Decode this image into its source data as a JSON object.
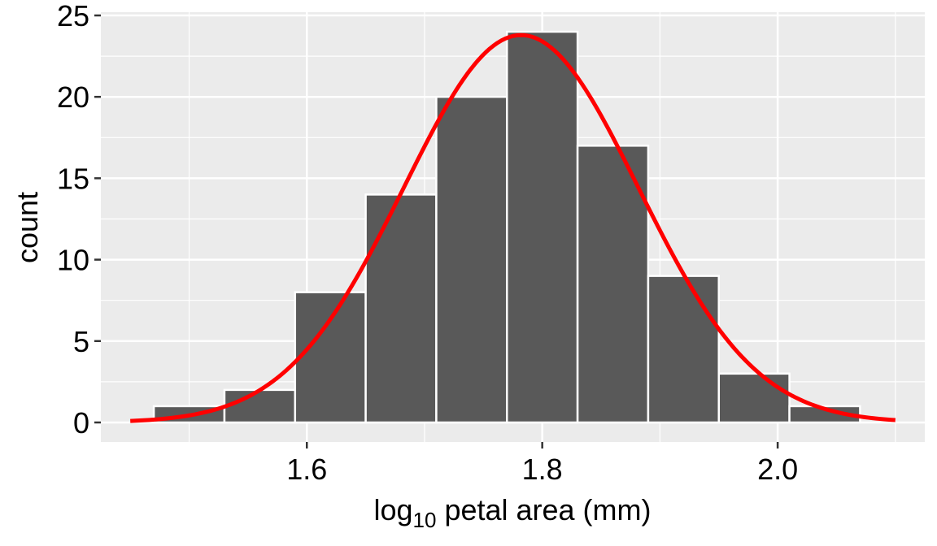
{
  "chart_data": {
    "type": "bar",
    "subtype": "histogram_with_normal_curve",
    "title": "",
    "xlabel": "log10 petal area (mm)",
    "xlabel_parts": {
      "base": "log",
      "subscript": "10",
      "rest": " petal area (mm)"
    },
    "ylabel": "count",
    "xlim": [
      1.425,
      2.125
    ],
    "ylim": [
      -1.2,
      25.2
    ],
    "x_ticks": [
      1.6,
      1.8,
      2.0
    ],
    "x_tick_labels": [
      "1.6",
      "1.8",
      "2.0"
    ],
    "x_minor_grid": [
      1.5,
      1.7,
      1.9,
      2.1
    ],
    "y_ticks": [
      0,
      5,
      10,
      15,
      20,
      25
    ],
    "y_tick_labels": [
      "0",
      "5",
      "10",
      "15",
      "20",
      "25"
    ],
    "y_minor_grid": [
      2.5,
      7.5,
      12.5,
      17.5,
      22.5
    ],
    "grid": true,
    "binwidth": 0.06,
    "bins": [
      {
        "xmin": 1.47,
        "xmax": 1.53,
        "count": 1
      },
      {
        "xmin": 1.53,
        "xmax": 1.59,
        "count": 2
      },
      {
        "xmin": 1.59,
        "xmax": 1.65,
        "count": 8
      },
      {
        "xmin": 1.65,
        "xmax": 1.71,
        "count": 14
      },
      {
        "xmin": 1.71,
        "xmax": 1.77,
        "count": 20
      },
      {
        "xmin": 1.77,
        "xmax": 1.83,
        "count": 24
      },
      {
        "xmin": 1.83,
        "xmax": 1.89,
        "count": 17
      },
      {
        "xmin": 1.89,
        "xmax": 1.95,
        "count": 9
      },
      {
        "xmin": 1.95,
        "xmax": 2.01,
        "count": 3
      },
      {
        "xmin": 2.01,
        "xmax": 2.07,
        "count": 1
      }
    ],
    "total_count": 99,
    "normal_curve": {
      "mean": 1.782,
      "sd": 0.0996,
      "x_range": [
        1.45,
        2.1
      ],
      "peak": 23.8,
      "color": "#ff0000"
    },
    "colors": {
      "panel_background": "#ebebeb",
      "grid": "#ffffff",
      "bar_fill": "#595959",
      "bar_outline": "#ffffff",
      "curve": "#ff0000",
      "tick": "#333333"
    },
    "legend": null
  }
}
